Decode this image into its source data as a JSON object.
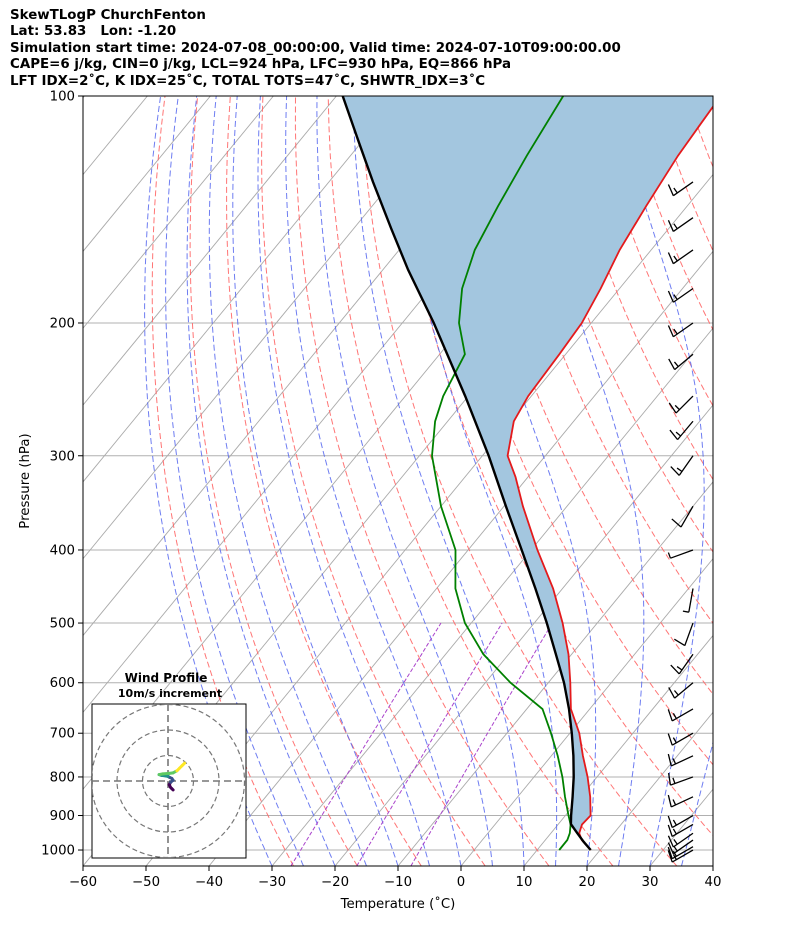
{
  "title_lines": [
    "SkewTLogP ChurchFenton",
    "Lat: 53.83   Lon: -1.20",
    "Simulation start time: 2024-07-08_00:00:00, Valid time: 2024-07-10T09:00:00.00",
    "CAPE=6 j/kg, CIN=0 j/kg, LCL=924 hPa, LFC=930 hPa, EQ=866 hPa",
    "LFT IDX=2˚C, K IDX=25˚C, TOTAL TOTS=47˚C, SHWTR_IDX=3˚C"
  ],
  "chart_data": {
    "type": "skew-t log-p",
    "xlabel": "Temperature (˚C)",
    "ylabel": "Pressure (hPa)",
    "xlim": [
      -60,
      40
    ],
    "ylim_hpa": [
      1050,
      100
    ],
    "x_ticks": [
      -60,
      -50,
      -40,
      -30,
      -20,
      -10,
      0,
      10,
      20,
      30,
      40
    ],
    "x_tick_labels": [
      "−60",
      "−50",
      "−40",
      "−30",
      "−20",
      "−10",
      "0",
      "10",
      "20",
      "30",
      "40"
    ],
    "y_ticks": [
      1000,
      900,
      800,
      700,
      600,
      500,
      400,
      300,
      200,
      100
    ],
    "y_tick_labels": [
      "1000",
      "900",
      "800",
      "700",
      "600",
      "500",
      "400",
      "300",
      "200",
      "100"
    ],
    "grid": true,
    "colors": {
      "temperature": "#e41a1c",
      "dewpoint": "#008000",
      "parcel": "#000000",
      "cape_fill": "#a3c6df",
      "dry_adiabat": "#ff6666",
      "moist_adiabat": "#5566ee",
      "mixing_ratio": "#aa44cc",
      "isotherm": "#aaaaaa"
    },
    "series": [
      {
        "key": "temperature",
        "pressure": [
          1000,
          970,
          950,
          925,
          900,
          850,
          800,
          750,
          700,
          650,
          600,
          550,
          500,
          450,
          400,
          350,
          320,
          300,
          270,
          250,
          220,
          200,
          180,
          160,
          140,
          120,
          110,
          100
        ],
        "values": [
          18.5,
          15.8,
          14.5,
          13.8,
          14.0,
          11.5,
          8.5,
          5.0,
          1.5,
          -3.0,
          -6.5,
          -10.5,
          -15.5,
          -21.5,
          -29.0,
          -37.0,
          -42.0,
          -46.0,
          -49.5,
          -50.5,
          -51.0,
          -51.5,
          -53.0,
          -55.0,
          -56.5,
          -58.0,
          -58.5,
          -59.0
        ]
      },
      {
        "key": "dewpoint",
        "pressure": [
          1000,
          970,
          950,
          925,
          900,
          850,
          800,
          750,
          700,
          650,
          600,
          550,
          500,
          450,
          400,
          350,
          300,
          270,
          250,
          220,
          200,
          180,
          160,
          140,
          120,
          100
        ],
        "values": [
          13.5,
          13.5,
          13.0,
          12.0,
          10.5,
          7.5,
          4.5,
          1.0,
          -3.0,
          -7.5,
          -16.0,
          -24.0,
          -31.0,
          -37.0,
          -42.0,
          -50.0,
          -58.0,
          -62.0,
          -64.0,
          -66.0,
          -71.0,
          -75.0,
          -78.0,
          -80.0,
          -82.0,
          -84.0
        ]
      },
      {
        "key": "parcel",
        "pressure": [
          1000,
          975,
          950,
          924,
          900,
          850,
          800,
          750,
          700,
          650,
          600,
          550,
          500,
          450,
          400,
          350,
          300,
          250,
          200,
          170,
          150,
          130,
          115,
          100
        ],
        "values": [
          18.5,
          16.3,
          14.2,
          12.0,
          10.9,
          8.7,
          6.3,
          3.5,
          0.3,
          -3.3,
          -7.5,
          -12.5,
          -18.0,
          -24.3,
          -31.5,
          -39.7,
          -49.0,
          -60.5,
          -75.0,
          -86.0,
          -94.0,
          -103.0,
          -110.5,
          -119.0
        ]
      }
    ],
    "barbs": [
      {
        "p": 1000,
        "speed": 15,
        "dir": 240
      },
      {
        "p": 990,
        "speed": 15,
        "dir": 240
      },
      {
        "p": 970,
        "speed": 15,
        "dir": 235
      },
      {
        "p": 950,
        "speed": 15,
        "dir": 235
      },
      {
        "p": 925,
        "speed": 15,
        "dir": 240
      },
      {
        "p": 900,
        "speed": 15,
        "dir": 240
      },
      {
        "p": 850,
        "speed": 15,
        "dir": 245
      },
      {
        "p": 800,
        "speed": 15,
        "dir": 250
      },
      {
        "p": 750,
        "speed": 15,
        "dir": 245
      },
      {
        "p": 700,
        "speed": 15,
        "dir": 240
      },
      {
        "p": 650,
        "speed": 15,
        "dir": 240
      },
      {
        "p": 600,
        "speed": 15,
        "dir": 230
      },
      {
        "p": 550,
        "speed": 15,
        "dir": 215
      },
      {
        "p": 500,
        "speed": 10,
        "dir": 200
      },
      {
        "p": 450,
        "speed": 5,
        "dir": 190
      },
      {
        "p": 400,
        "speed": 5,
        "dir": 250
      },
      {
        "p": 350,
        "speed": 10,
        "dir": 210
      },
      {
        "p": 300,
        "speed": 15,
        "dir": 215
      },
      {
        "p": 270,
        "speed": 15,
        "dir": 220
      },
      {
        "p": 250,
        "speed": 15,
        "dir": 225
      },
      {
        "p": 220,
        "speed": 15,
        "dir": 230
      },
      {
        "p": 200,
        "speed": 15,
        "dir": 235
      },
      {
        "p": 180,
        "speed": 15,
        "dir": 235
      },
      {
        "p": 160,
        "speed": 15,
        "dir": 235
      },
      {
        "p": 145,
        "speed": 15,
        "dir": 235
      },
      {
        "p": 130,
        "speed": 15,
        "dir": 235
      }
    ],
    "hodograph": {
      "title": "Wind Profile",
      "subtitle": "10m/s increment",
      "rings_ms": [
        10,
        20,
        30
      ],
      "u": [
        2.0,
        1.5,
        1.0,
        0.5,
        1.0,
        2.0,
        1.5,
        0.5,
        0.0,
        -1.0,
        -2.5,
        -3.5,
        -2.0,
        0.5,
        2.0,
        3.5,
        4.5,
        5.5,
        6.5
      ],
      "v": [
        -3.5,
        -3.0,
        -2.5,
        -1.5,
        -0.5,
        0.3,
        1.0,
        1.5,
        1.8,
        2.0,
        2.2,
        2.5,
        2.8,
        3.0,
        3.2,
        4.0,
        5.0,
        6.0,
        7.0
      ]
    }
  }
}
